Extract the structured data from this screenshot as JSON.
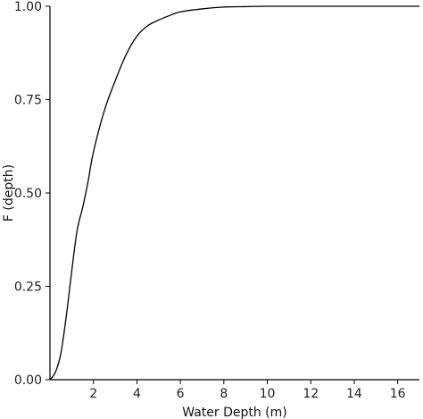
{
  "chart_data": {
    "type": "line",
    "title": "",
    "xlabel": "Water Depth (m)",
    "ylabel": "F (depth)",
    "xlim": [
      0,
      17
    ],
    "ylim": [
      0,
      1
    ],
    "xticks": [
      2,
      4,
      6,
      8,
      10,
      12,
      14,
      16
    ],
    "xtick_labels": [
      "2",
      "4",
      "6",
      "8",
      "10",
      "12",
      "14",
      "16"
    ],
    "yticks": [
      0,
      0.25,
      0.5,
      0.75,
      1
    ],
    "ytick_labels": [
      "0.00",
      "0.25",
      "0.50",
      "0.75",
      "1.00"
    ],
    "grid": false,
    "legend": "none",
    "line_color": "#000000",
    "series": [
      {
        "x": [
          0,
          0.25,
          0.5,
          0.75,
          1.0,
          1.25,
          1.5,
          1.75,
          2.0,
          2.5,
          3.0,
          3.5,
          4.0,
          4.5,
          5.0,
          5.5,
          6.0,
          7.0,
          8.0,
          9.0,
          10.0,
          12.0,
          14.0,
          16.0,
          17.0
        ],
        "y": [
          0,
          0.02,
          0.07,
          0.17,
          0.29,
          0.4,
          0.46,
          0.53,
          0.61,
          0.72,
          0.8,
          0.87,
          0.92,
          0.948,
          0.963,
          0.975,
          0.985,
          0.993,
          0.998,
          0.999,
          1.0,
          1.0,
          1.0,
          1.0,
          1.0
        ]
      }
    ]
  }
}
